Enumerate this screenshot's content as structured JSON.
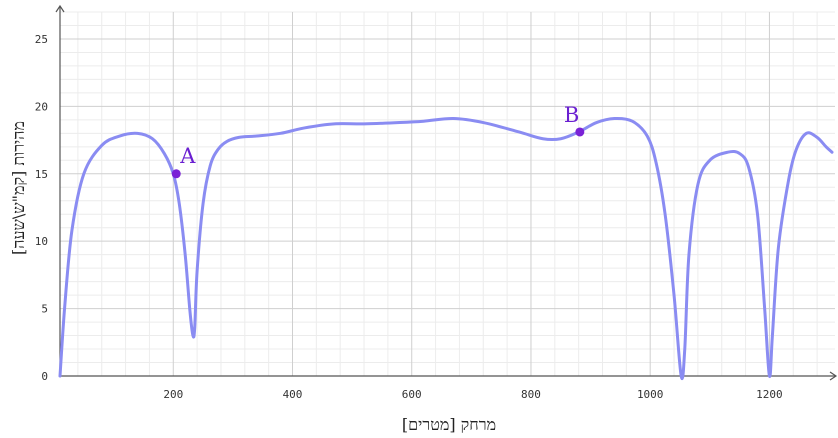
{
  "chart_data": {
    "type": "line",
    "xlabel": "מרחק [מטרים]",
    "ylabel": "מהירות [קמ\"ש\\שעה]",
    "xlim": [
      10,
      1310
    ],
    "ylim": [
      0,
      27
    ],
    "x_ticks": [
      200,
      400,
      600,
      800,
      1000,
      1200
    ],
    "y_ticks": [
      0,
      5,
      10,
      15,
      20,
      25
    ],
    "grid": true,
    "line_color": "#8a8cf2",
    "point_color": "#7a22d6",
    "series": [
      {
        "x": [
          10,
          18,
          30,
          50,
          80,
          110,
          140,
          165,
          185,
          200,
          210,
          220,
          228,
          233,
          236,
          240,
          250,
          262,
          275,
          290,
          310,
          340,
          380,
          420,
          470,
          520,
          580,
          620,
          670,
          720,
          780,
          820,
          850,
          880,
          910,
          940,
          970,
          995,
          1010,
          1025,
          1040,
          1052,
          1058,
          1065,
          1080,
          1100,
          1130,
          1150,
          1165,
          1180,
          1192,
          1200,
          1205,
          1215,
          1232,
          1245,
          1262,
          1280,
          1295,
          1305
        ],
        "values": [
          0,
          5.2,
          10.8,
          15.0,
          17.1,
          17.8,
          18.0,
          17.6,
          16.5,
          15.0,
          12.8,
          9.0,
          4.8,
          3.0,
          3.6,
          7.8,
          12.8,
          15.6,
          16.8,
          17.4,
          17.7,
          17.8,
          18.0,
          18.4,
          18.7,
          18.7,
          18.8,
          18.9,
          19.1,
          18.8,
          18.1,
          17.6,
          17.6,
          18.1,
          18.8,
          19.1,
          18.9,
          17.8,
          15.8,
          12.0,
          6.0,
          0,
          2.0,
          9.0,
          14.2,
          16.0,
          16.6,
          16.5,
          15.5,
          12.0,
          5.0,
          0,
          3.0,
          9.5,
          14.5,
          16.8,
          18.0,
          17.7,
          17.0,
          16.6
        ]
      }
    ],
    "points": [
      {
        "label": "A",
        "x": 205,
        "y": 15.0
      },
      {
        "label": "B",
        "x": 882,
        "y": 18.1
      }
    ]
  }
}
